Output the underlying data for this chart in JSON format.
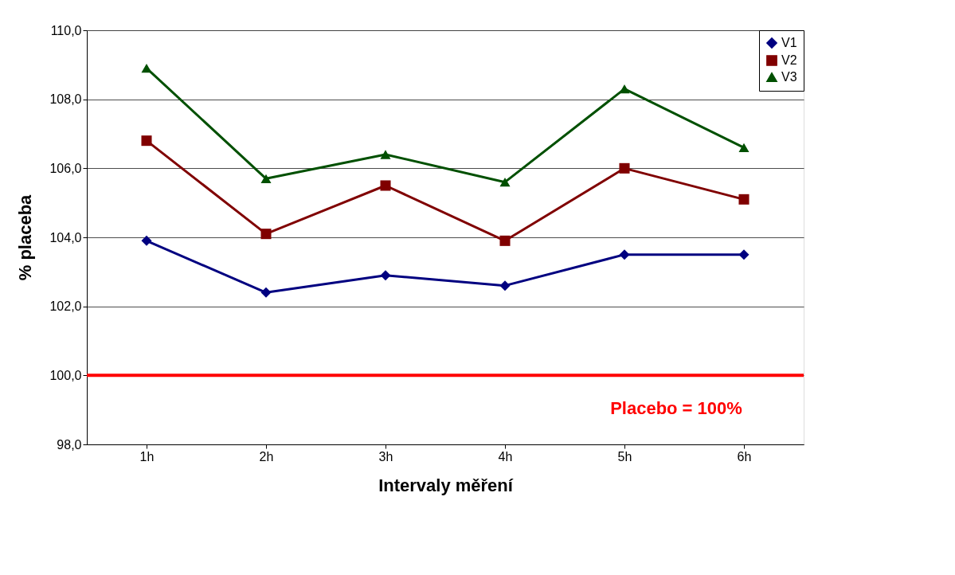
{
  "chart_data": {
    "type": "line",
    "xlabel": "Intervaly měření",
    "ylabel": "%  placeba",
    "categories": [
      "1h",
      "2h",
      "3h",
      "4h",
      "5h",
      "6h"
    ],
    "series": [
      {
        "name": "V1",
        "color": "#000080",
        "marker": "diamond",
        "values": [
          103.9,
          102.4,
          102.9,
          102.6,
          103.5,
          103.5
        ]
      },
      {
        "name": "V2",
        "color": "#800000",
        "marker": "square",
        "values": [
          106.8,
          104.1,
          105.5,
          103.9,
          106.0,
          105.1
        ]
      },
      {
        "name": "V3",
        "color": "#005000",
        "marker": "triangle",
        "values": [
          108.9,
          105.7,
          106.4,
          105.6,
          108.3,
          106.6
        ]
      }
    ],
    "ylim": [
      98,
      110
    ],
    "yticks": [
      {
        "value": 98,
        "label": "98,0"
      },
      {
        "value": 100,
        "label": "100,0"
      },
      {
        "value": 102,
        "label": "102,0"
      },
      {
        "value": 104,
        "label": "104,0"
      },
      {
        "value": 106,
        "label": "106,0"
      },
      {
        "value": 108,
        "label": "108,0"
      },
      {
        "value": 110,
        "label": "110,0"
      }
    ],
    "ref_lines": [
      {
        "axis": "y",
        "value": 100,
        "color": "#ff0000"
      }
    ],
    "annotations": [
      "Placebo = 100%"
    ],
    "grid": "y",
    "legend": "top right",
    "line_style": "solid"
  }
}
